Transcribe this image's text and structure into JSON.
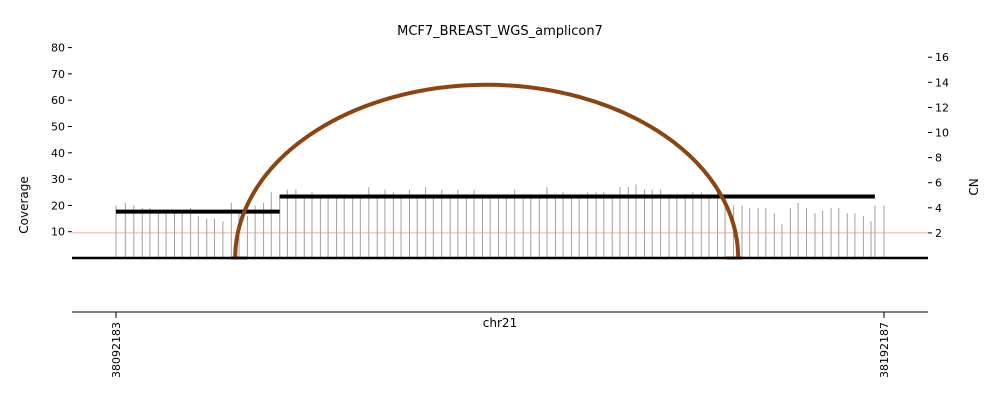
{
  "chart_data": {
    "type": "line",
    "title": "MCF7_BREAST_WGS_amplicon7",
    "xlabel": "chr21",
    "ylabel_left": "Coverage",
    "ylabel_right": "CN",
    "x_range": [
      38092183,
      38192187
    ],
    "x_ticks": [
      "38092183",
      "38192187"
    ],
    "y_left_lim": [
      0,
      80
    ],
    "y_left_ticks": [
      10,
      20,
      30,
      40,
      50,
      60,
      70,
      80
    ],
    "y_right_lim": [
      0,
      17
    ],
    "y_right_ticks": [
      2,
      4,
      6,
      8,
      10,
      12,
      14,
      16
    ],
    "cn_reference_line": 2,
    "coverage_bins": [
      {
        "x": 38092183,
        "y": 20
      },
      {
        "x": 38093400,
        "y": 21
      },
      {
        "x": 38094500,
        "y": 20
      },
      {
        "x": 38095600,
        "y": 19
      },
      {
        "x": 38096600,
        "y": 19
      },
      {
        "x": 38097700,
        "y": 17
      },
      {
        "x": 38098700,
        "y": 18
      },
      {
        "x": 38099800,
        "y": 18
      },
      {
        "x": 38100800,
        "y": 17
      },
      {
        "x": 38101900,
        "y": 19
      },
      {
        "x": 38102900,
        "y": 16
      },
      {
        "x": 38104000,
        "y": 15
      },
      {
        "x": 38105000,
        "y": 15
      },
      {
        "x": 38106100,
        "y": 14
      },
      {
        "x": 38107200,
        "y": 21
      },
      {
        "x": 38108200,
        "y": 17
      },
      {
        "x": 38109300,
        "y": 16
      },
      {
        "x": 38110300,
        "y": 20
      },
      {
        "x": 38111400,
        "y": 21
      },
      {
        "x": 38112400,
        "y": 25
      },
      {
        "x": 38113500,
        "y": 24
      },
      {
        "x": 38114500,
        "y": 26
      },
      {
        "x": 38115600,
        "y": 26
      },
      {
        "x": 38116700,
        "y": 24
      },
      {
        "x": 38117700,
        "y": 25
      },
      {
        "x": 38118800,
        "y": 24
      },
      {
        "x": 38119800,
        "y": 23
      },
      {
        "x": 38120900,
        "y": 24
      },
      {
        "x": 38121900,
        "y": 24
      },
      {
        "x": 38123000,
        "y": 23
      },
      {
        "x": 38124000,
        "y": 24
      },
      {
        "x": 38125100,
        "y": 27
      },
      {
        "x": 38126200,
        "y": 24
      },
      {
        "x": 38127200,
        "y": 26
      },
      {
        "x": 38128300,
        "y": 25
      },
      {
        "x": 38129300,
        "y": 24
      },
      {
        "x": 38130400,
        "y": 26
      },
      {
        "x": 38131400,
        "y": 24
      },
      {
        "x": 38132500,
        "y": 27
      },
      {
        "x": 38133500,
        "y": 24
      },
      {
        "x": 38134600,
        "y": 26
      },
      {
        "x": 38135700,
        "y": 24
      },
      {
        "x": 38136700,
        "y": 26
      },
      {
        "x": 38137800,
        "y": 24
      },
      {
        "x": 38138800,
        "y": 26
      },
      {
        "x": 38139900,
        "y": 24
      },
      {
        "x": 38140900,
        "y": 23
      },
      {
        "x": 38142000,
        "y": 24
      },
      {
        "x": 38143000,
        "y": 23
      },
      {
        "x": 38144100,
        "y": 26
      },
      {
        "x": 38145200,
        "y": 24
      },
      {
        "x": 38146200,
        "y": 23
      },
      {
        "x": 38147300,
        "y": 24
      },
      {
        "x": 38148300,
        "y": 27
      },
      {
        "x": 38149400,
        "y": 24
      },
      {
        "x": 38150400,
        "y": 25
      },
      {
        "x": 38151500,
        "y": 24
      },
      {
        "x": 38152500,
        "y": 23
      },
      {
        "x": 38153600,
        "y": 25
      },
      {
        "x": 38154700,
        "y": 25
      },
      {
        "x": 38155700,
        "y": 25
      },
      {
        "x": 38156800,
        "y": 24
      },
      {
        "x": 38157800,
        "y": 27
      },
      {
        "x": 38158900,
        "y": 27
      },
      {
        "x": 38159900,
        "y": 28
      },
      {
        "x": 38161000,
        "y": 26
      },
      {
        "x": 38162000,
        "y": 26
      },
      {
        "x": 38163100,
        "y": 26
      },
      {
        "x": 38164200,
        "y": 24
      },
      {
        "x": 38165200,
        "y": 23
      },
      {
        "x": 38166300,
        "y": 24
      },
      {
        "x": 38167300,
        "y": 25
      },
      {
        "x": 38168400,
        "y": 25
      },
      {
        "x": 38169400,
        "y": 24
      },
      {
        "x": 38170500,
        "y": 25
      },
      {
        "x": 38171500,
        "y": 23
      },
      {
        "x": 38172600,
        "y": 20
      },
      {
        "x": 38173700,
        "y": 20
      },
      {
        "x": 38174700,
        "y": 19
      },
      {
        "x": 38175800,
        "y": 19
      },
      {
        "x": 38176800,
        "y": 19
      },
      {
        "x": 38177900,
        "y": 17
      },
      {
        "x": 38178900,
        "y": 13
      },
      {
        "x": 38180000,
        "y": 19
      },
      {
        "x": 38181000,
        "y": 21
      },
      {
        "x": 38182100,
        "y": 19
      },
      {
        "x": 38183200,
        "y": 17
      },
      {
        "x": 38184200,
        "y": 18
      },
      {
        "x": 38185300,
        "y": 19
      },
      {
        "x": 38186300,
        "y": 19
      },
      {
        "x": 38187400,
        "y": 17
      },
      {
        "x": 38188400,
        "y": 17
      },
      {
        "x": 38189500,
        "y": 16
      },
      {
        "x": 38190500,
        "y": 14
      },
      {
        "x": 38191000,
        "y": 20
      },
      {
        "x": 38192187,
        "y": 20
      }
    ],
    "cn_segments": [
      {
        "start": 38092183,
        "end": 38113500,
        "cn": 3.7
      },
      {
        "start": 38113500,
        "end": 38191000,
        "cn": 4.9
      }
    ],
    "breakpoints": [
      {
        "start": 38107700,
        "end": 38173200,
        "height_cn": 13.8,
        "color": "#8B4513"
      }
    ],
    "colors": {
      "coverage": "#a0a0a0",
      "segment": "#000000",
      "cn_line": "#e8908a",
      "breakpoint": "#8B4513"
    }
  }
}
